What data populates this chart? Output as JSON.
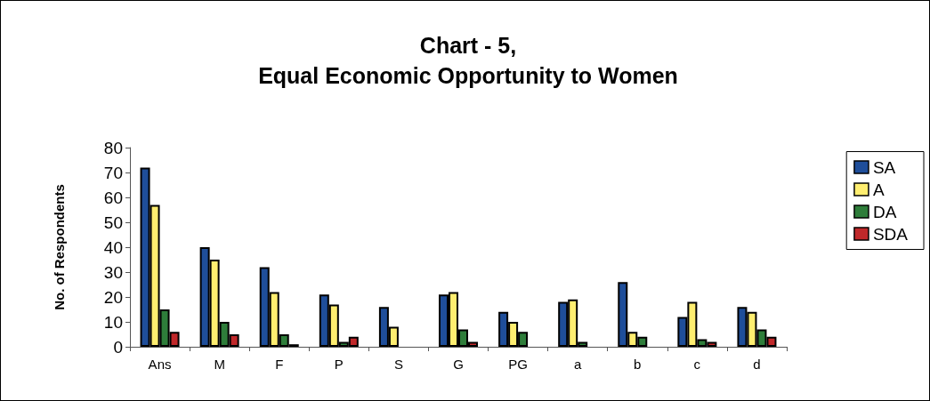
{
  "chart_data": {
    "type": "bar",
    "title": "Chart - 5,\nEqual Economic Opportunity to Women",
    "ylabel": "No. of Respondents",
    "categories": [
      "Ans",
      "M",
      "F",
      "P",
      "S",
      "G",
      "PG",
      "a",
      "b",
      "c",
      "d"
    ],
    "series": [
      {
        "name": "SA",
        "color": "#1f4e9a",
        "values": [
          72,
          40,
          32,
          21,
          16,
          21,
          14,
          18,
          26,
          12,
          16
        ]
      },
      {
        "name": "A",
        "color": "#ffee70",
        "values": [
          57,
          35,
          22,
          17,
          8,
          22,
          10,
          19,
          6,
          18,
          14
        ]
      },
      {
        "name": "DA",
        "color": "#2e7d3a",
        "values": [
          15,
          10,
          5,
          2,
          0,
          7,
          6,
          2,
          4,
          3,
          7
        ]
      },
      {
        "name": "SDA",
        "color": "#c0282a",
        "values": [
          6,
          5,
          1,
          4,
          0,
          2,
          0,
          0,
          0,
          2,
          4
        ]
      }
    ],
    "ylim": [
      0,
      80
    ],
    "yticks": [
      0,
      10,
      20,
      30,
      40,
      50,
      60,
      70,
      80
    ],
    "grid": false,
    "legend": "right"
  }
}
